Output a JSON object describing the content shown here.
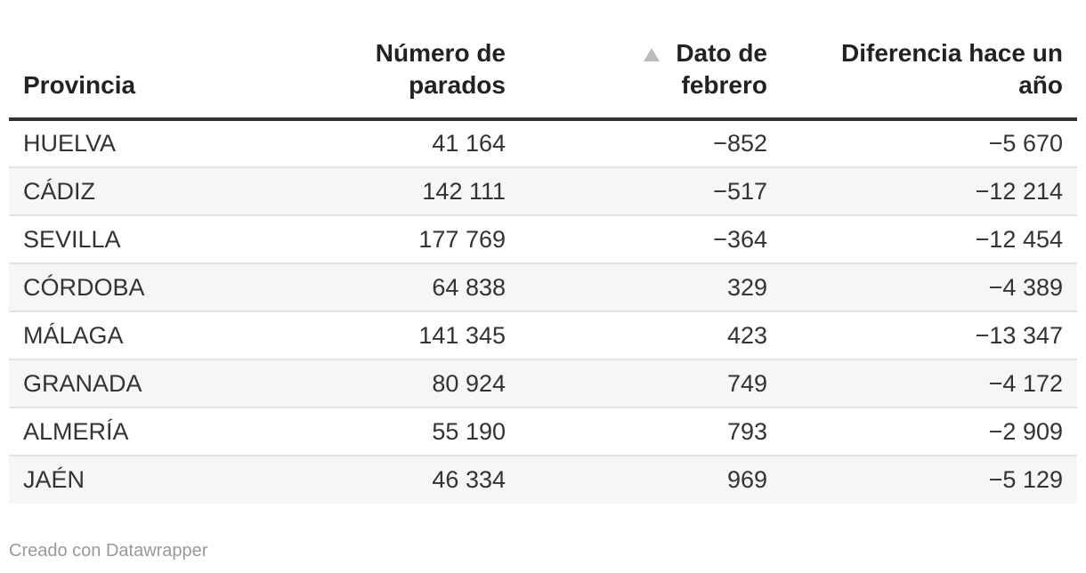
{
  "chart_data": {
    "type": "table",
    "columns": [
      "Provincia",
      "Número de parados",
      "Dato de febrero",
      "Diferencia hace un año"
    ],
    "sorted_column": "Dato de febrero",
    "sort_direction": "ascending",
    "rows": [
      [
        "HUELVA",
        "41 164",
        "−852",
        "−5 670"
      ],
      [
        "CÁDIZ",
        "142 111",
        "−517",
        "−12 214"
      ],
      [
        "SEVILLA",
        "177 769",
        "−364",
        "−12 454"
      ],
      [
        "CÓRDOBA",
        "64 838",
        "329",
        "−4 389"
      ],
      [
        "MÁLAGA",
        "141 345",
        "423",
        "−13 347"
      ],
      [
        "GRANADA",
        "80 924",
        "749",
        "−4 172"
      ],
      [
        "ALMERÍA",
        "55 190",
        "793",
        "−2 909"
      ],
      [
        "JAÉN",
        "46 334",
        "969",
        "−5 129"
      ]
    ]
  },
  "header": {
    "col1": "Provincia",
    "col2_line1": "Número de",
    "col2_line2": "parados",
    "col3_line1": "Dato de",
    "col3_line2": "febrero",
    "col4_line1": "Diferencia hace un",
    "col4_line2": "año"
  },
  "icons": {
    "sort": "sort-ascending-icon"
  },
  "colors": {
    "sort_icon": "#bcbcbc",
    "header_rule": "#333333",
    "row_stripe": "#f6f6f6"
  },
  "footer": {
    "credit": "Creado con Datawrapper"
  }
}
